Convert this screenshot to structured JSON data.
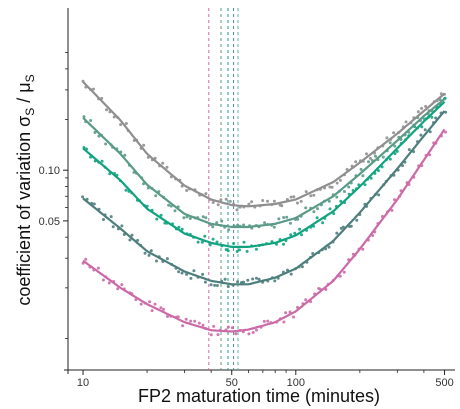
{
  "chart_data": {
    "type": "line",
    "title": "",
    "xlabel": "FP2 maturation time (minutes)",
    "ylabel": "coefficient of variation σ",
    "ylabel_sub": "S",
    "ylabel_tail": " / μ",
    "ylabel_tail_sub": "S",
    "x_scale": "log",
    "y_scale": "log",
    "xlim": [
      8.5,
      560
    ],
    "ylim": [
      0.0065,
      0.92
    ],
    "x_ticks": [
      {
        "value": 10,
        "label": "10"
      },
      {
        "value": 50,
        "label": "50"
      },
      {
        "value": 100,
        "label": "100"
      },
      {
        "value": 500,
        "label": "500"
      }
    ],
    "x_minor_ticks": [
      20,
      30,
      40,
      60,
      70,
      80,
      90,
      200,
      300,
      400
    ],
    "y_ticks": [
      {
        "value": 0.05,
        "label": "0.05"
      },
      {
        "value": 0.1,
        "label": "0.10"
      }
    ],
    "grid": false,
    "legend": "none",
    "vlines": [
      {
        "x": 39,
        "color": "#d46aa8"
      },
      {
        "x": 44.5,
        "color": "#5f9a84"
      },
      {
        "x": 48,
        "color": "#11a37f"
      },
      {
        "x": 51,
        "color": "#4d8d86"
      },
      {
        "x": 53.5,
        "color": "#55b3a6"
      }
    ],
    "series": [
      {
        "color": "#8f8f8f",
        "x": [
          10,
          15,
          20,
          30,
          40,
          50,
          60,
          80,
          100,
          150,
          200,
          300,
          400,
          500
        ],
        "y": [
          0.335,
          0.198,
          0.125,
          0.081,
          0.067,
          0.062,
          0.061,
          0.063,
          0.067,
          0.085,
          0.111,
          0.165,
          0.225,
          0.285
        ]
      },
      {
        "color": "#5a9a87",
        "x": [
          10,
          15,
          20,
          30,
          40,
          50,
          60,
          80,
          100,
          150,
          200,
          300,
          400,
          500
        ],
        "y": [
          0.205,
          0.125,
          0.082,
          0.055,
          0.048,
          0.046,
          0.046,
          0.048,
          0.052,
          0.07,
          0.095,
          0.15,
          0.21,
          0.265
        ]
      },
      {
        "color": "#11a37f",
        "x": [
          10,
          15,
          20,
          30,
          40,
          50,
          60,
          80,
          100,
          150,
          200,
          300,
          400,
          500
        ],
        "y": [
          0.135,
          0.087,
          0.059,
          0.042,
          0.037,
          0.035,
          0.035,
          0.037,
          0.041,
          0.057,
          0.08,
          0.135,
          0.195,
          0.255
        ]
      },
      {
        "color": "#4d7e7c",
        "x": [
          10,
          15,
          20,
          30,
          40,
          50,
          60,
          80,
          100,
          150,
          200,
          300,
          400,
          500
        ],
        "y": [
          0.068,
          0.045,
          0.033,
          0.025,
          0.022,
          0.021,
          0.021,
          0.023,
          0.026,
          0.038,
          0.056,
          0.102,
          0.16,
          0.225
        ]
      },
      {
        "color": "#cc6aa7",
        "x": [
          10,
          15,
          20,
          30,
          40,
          50,
          60,
          80,
          100,
          150,
          200,
          300,
          400,
          500
        ],
        "y": [
          0.029,
          0.02,
          0.016,
          0.0125,
          0.0112,
          0.011,
          0.0113,
          0.0125,
          0.0145,
          0.022,
          0.034,
          0.067,
          0.115,
          0.175
        ]
      }
    ]
  }
}
